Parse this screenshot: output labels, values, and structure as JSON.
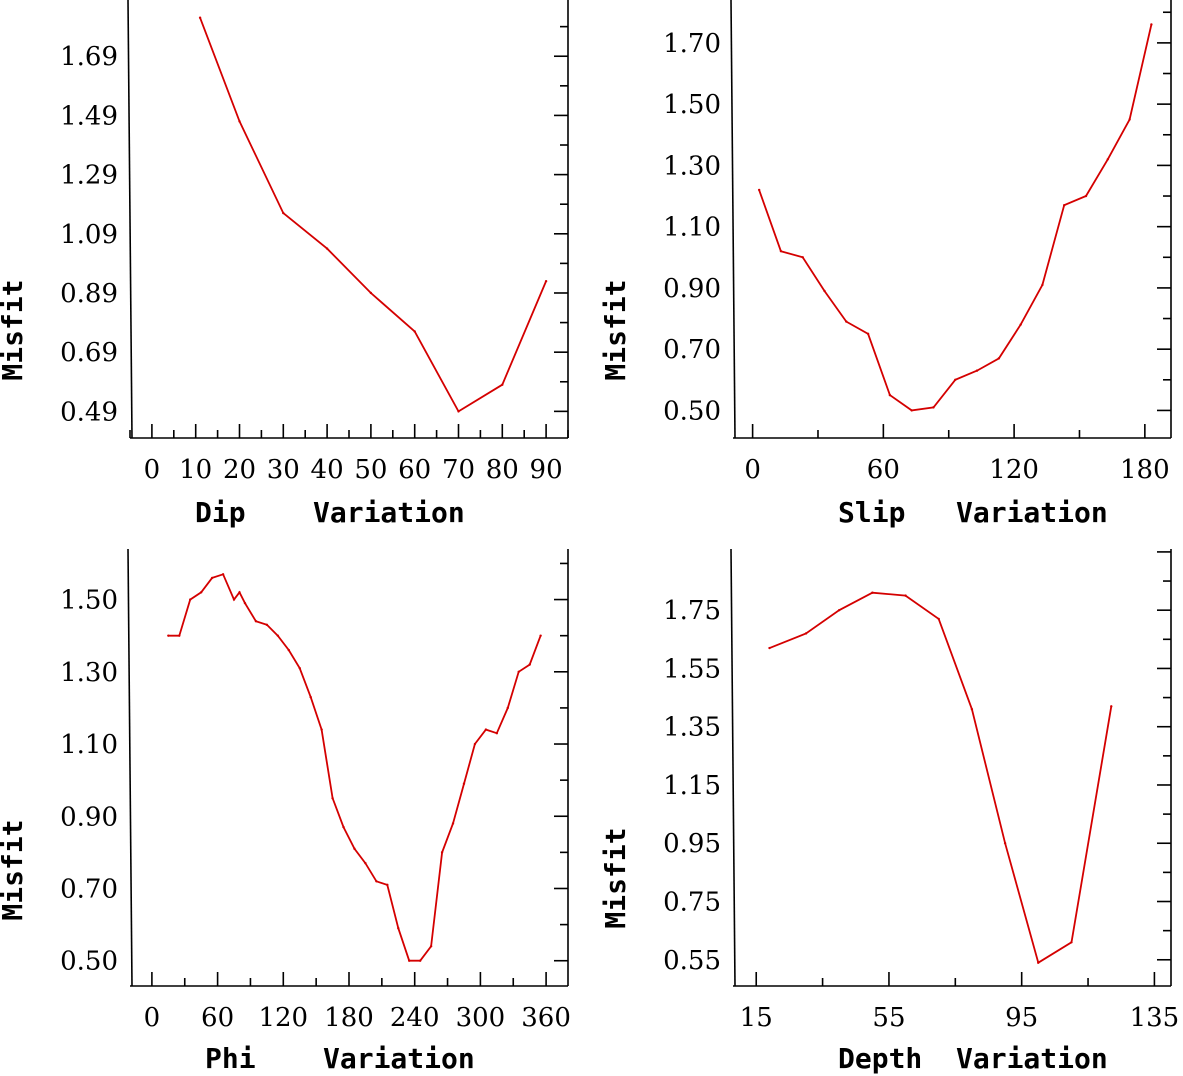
{
  "chart_data": [
    {
      "type": "line",
      "name": "dip",
      "xlabel": "Dip    Variation",
      "ylabel": "Misfit",
      "xlim": [
        -5,
        95
      ],
      "ylim": [
        0.4,
        1.88
      ],
      "xticks": [
        0,
        10,
        20,
        30,
        40,
        50,
        60,
        70,
        80,
        90
      ],
      "xticklabels": [
        "0",
        "10",
        "20",
        "30",
        "40",
        "50",
        "60",
        "70",
        "80",
        "90"
      ],
      "yticks": [
        0.49,
        0.69,
        0.89,
        1.09,
        1.29,
        1.49,
        1.69
      ],
      "yticklabels": [
        "0.49",
        "0.69",
        "0.89",
        "1.09",
        "1.29",
        "1.49",
        "1.69"
      ],
      "x": [
        11,
        20,
        30,
        40,
        50,
        60,
        70,
        80,
        90
      ],
      "y": [
        1.82,
        1.47,
        1.16,
        1.04,
        0.89,
        0.76,
        0.49,
        0.58,
        0.93
      ],
      "color": "#d40000"
    },
    {
      "type": "line",
      "name": "slip",
      "xlabel": "Slip   Variation",
      "ylabel": "Misfit",
      "xlim": [
        -9,
        192
      ],
      "ylim": [
        0.41,
        1.84
      ],
      "xticks": [
        0,
        60,
        120,
        180
      ],
      "xticklabels": [
        "0",
        "60",
        "120",
        "180"
      ],
      "yticks": [
        0.5,
        0.7,
        0.9,
        1.1,
        1.3,
        1.5,
        1.7
      ],
      "yticklabels": [
        "0.50",
        "0.70",
        "0.90",
        "1.10",
        "1.30",
        "1.50",
        "1.70"
      ],
      "x": [
        3,
        13,
        23,
        33,
        43,
        53,
        63,
        73,
        83,
        93,
        103,
        113,
        123,
        133,
        143,
        153,
        163,
        173,
        183
      ],
      "y": [
        1.22,
        1.02,
        1.0,
        0.89,
        0.79,
        0.75,
        0.55,
        0.5,
        0.51,
        0.6,
        0.63,
        0.67,
        0.78,
        0.91,
        1.17,
        1.2,
        1.32,
        1.45,
        1.76
      ],
      "color": "#d40000"
    },
    {
      "type": "line",
      "name": "phi",
      "xlabel": "Phi    Variation",
      "ylabel": "Misfit",
      "xlim": [
        -20,
        380
      ],
      "ylim": [
        0.43,
        1.64
      ],
      "xticks": [
        0,
        60,
        120,
        180,
        240,
        300,
        360
      ],
      "xticklabels": [
        "0",
        "60",
        "120",
        "180",
        "240",
        "300",
        "360"
      ],
      "yticks": [
        0.5,
        0.7,
        0.9,
        1.1,
        1.3,
        1.5
      ],
      "yticklabels": [
        "0.50",
        "0.70",
        "0.90",
        "1.10",
        "1.30",
        "1.50"
      ],
      "x": [
        15,
        25,
        35,
        45,
        55,
        65,
        75,
        80,
        85,
        95,
        105,
        115,
        125,
        135,
        145,
        155,
        165,
        175,
        185,
        195,
        205,
        215,
        225,
        235,
        245,
        255,
        265,
        275,
        285,
        295,
        305,
        315,
        325,
        335,
        345,
        355
      ],
      "y": [
        1.4,
        1.4,
        1.5,
        1.52,
        1.56,
        1.57,
        1.5,
        1.52,
        1.49,
        1.44,
        1.43,
        1.4,
        1.36,
        1.31,
        1.23,
        1.14,
        0.95,
        0.87,
        0.81,
        0.77,
        0.72,
        0.71,
        0.59,
        0.5,
        0.5,
        0.54,
        0.8,
        0.88,
        0.99,
        1.1,
        1.14,
        1.13,
        1.2,
        1.3,
        1.32,
        1.4
      ],
      "color": "#d40000"
    },
    {
      "type": "line",
      "name": "depth",
      "xlabel": "Depth  Variation",
      "ylabel": "Misfit",
      "xlim": [
        8,
        140
      ],
      "ylim": [
        0.46,
        1.96
      ],
      "xticks": [
        15,
        55,
        95,
        135
      ],
      "xticklabels": [
        "15",
        "55",
        "95",
        "135"
      ],
      "yticks": [
        0.55,
        0.75,
        0.95,
        1.15,
        1.35,
        1.55,
        1.75
      ],
      "yticklabels": [
        "0.55",
        "0.75",
        "0.95",
        "1.15",
        "1.35",
        "1.55",
        "1.75"
      ],
      "x": [
        19,
        30,
        40,
        50,
        60,
        70,
        80,
        90,
        100,
        110,
        122
      ],
      "y": [
        1.62,
        1.67,
        1.75,
        1.81,
        1.8,
        1.72,
        1.41,
        0.95,
        0.54,
        0.61,
        1.42
      ],
      "color": "#d40000"
    }
  ]
}
